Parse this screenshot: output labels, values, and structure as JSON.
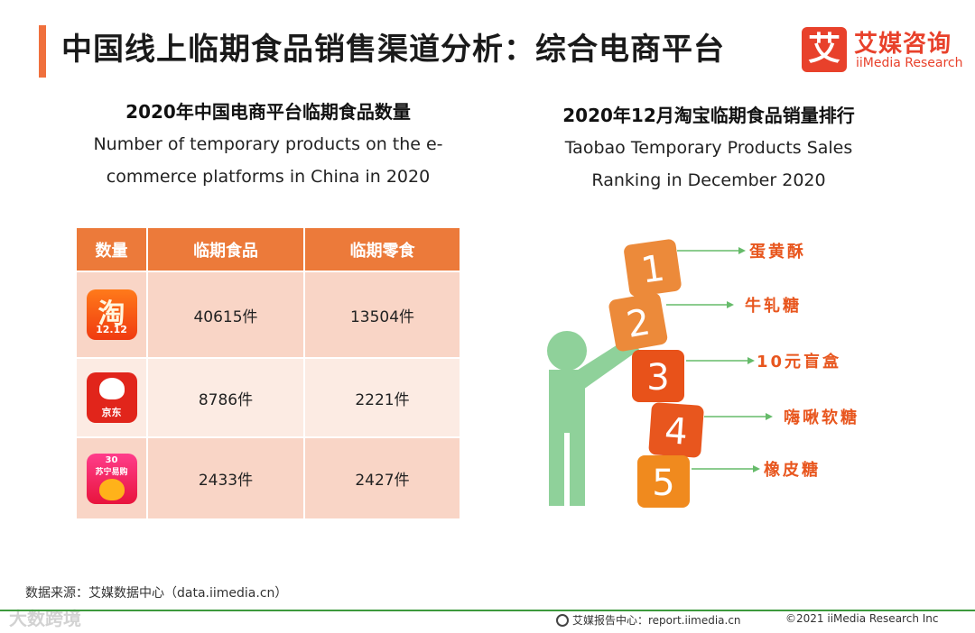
{
  "header": {
    "title": "中国线上临期食品销售渠道分析：综合电商平台",
    "brand_logo_char": "艾",
    "brand_cn": "艾媒咨询",
    "brand_en": "iiMedia Research"
  },
  "left": {
    "title": "2020年中国电商平台临期食品数量",
    "subtitle_line1": "Number of temporary products on the e-",
    "subtitle_line2": "commerce platforms in China in 2020",
    "table": {
      "headers": [
        "数量",
        "临期食品",
        "临期零食"
      ],
      "rows": [
        {
          "platform_icon": "taobao-icon",
          "icon_text": "淘",
          "icon_sub": "12.12",
          "food": "40615件",
          "snack": "13504件"
        },
        {
          "platform_icon": "jd-icon",
          "icon_sub": "京东",
          "food": "8786件",
          "snack": "2221件"
        },
        {
          "platform_icon": "suning-icon",
          "icon_top": "30",
          "icon_mid": "苏宁易购",
          "food": "2433件",
          "snack": "2427件"
        }
      ]
    }
  },
  "right": {
    "title": "2020年12月淘宝临期食品销量排行",
    "subtitle_line1": "Taobao Temporary Products Sales",
    "subtitle_line2": "Ranking in December 2020",
    "ranking": [
      {
        "rank": "1",
        "name": "蛋黄酥",
        "color": "#ec8a3a"
      },
      {
        "rank": "2",
        "name": "牛轧糖",
        "color": "#ec8a3a"
      },
      {
        "rank": "3",
        "name": "10元盲盒",
        "color": "#e8521a"
      },
      {
        "rank": "4",
        "name": "嗨啾软糖",
        "color": "#e8561e"
      },
      {
        "rank": "5",
        "name": "橡皮糖",
        "color": "#f08a1e"
      }
    ],
    "figure_color": "#8fd19a",
    "arrow_color": "#66bb6a",
    "label_color": "#e8561e"
  },
  "footer": {
    "source": "数据来源：艾媒数据中心（data.iimedia.cn）",
    "watermark": "大数跨境",
    "report_center": "艾媒报告中心：report.iimedia.cn",
    "copyright": "©2021  iiMedia Research  Inc"
  }
}
